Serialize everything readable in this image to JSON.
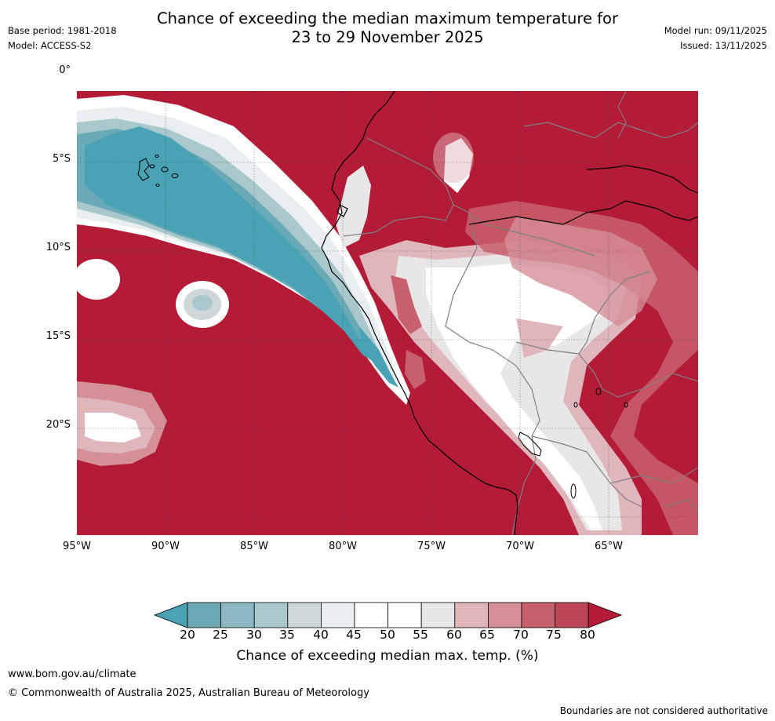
{
  "header": {
    "title_line1": "Chance of exceeding the median maximum temperature for",
    "title_line2": "23 to 29 November 2025",
    "base_period": "Base period: 1981-2018",
    "model": "Model: ACCESS-S2",
    "model_run": "Model run: 09/11/2025",
    "issued": "Issued: 13/11/2025"
  },
  "map": {
    "lat_labels": [
      "0°",
      "5°S",
      "10°S",
      "15°S",
      "20°S"
    ],
    "lon_labels": [
      "95°W",
      "90°W",
      "85°W",
      "80°W",
      "75°W",
      "70°W",
      "65°W"
    ],
    "background_color": "#b31b37",
    "coastline_color": "#000000",
    "border_color": "#808080"
  },
  "colorbar": {
    "ticks": [
      "20",
      "25",
      "30",
      "35",
      "40",
      "45",
      "50",
      "55",
      "60",
      "65",
      "70",
      "75",
      "80"
    ],
    "colors": [
      "#49a3b5",
      "#6aa9b6",
      "#8bb8c3",
      "#a9c8cc",
      "#d0d7d9",
      "#e9eef1",
      "#ffffff",
      "#ffffff",
      "#e9e6e7",
      "#dfb6bb",
      "#d48f97",
      "#c9606e",
      "#bb4656",
      "#b31b37"
    ],
    "label": "Chance of exceeding median max. temp. (%)"
  },
  "footer": {
    "website": "www.bom.gov.au/climate",
    "copyright": "© Commonwealth of Australia 2025, Australian Bureau of Meteorology",
    "boundary_note": "Boundaries are not considered authoritative"
  }
}
